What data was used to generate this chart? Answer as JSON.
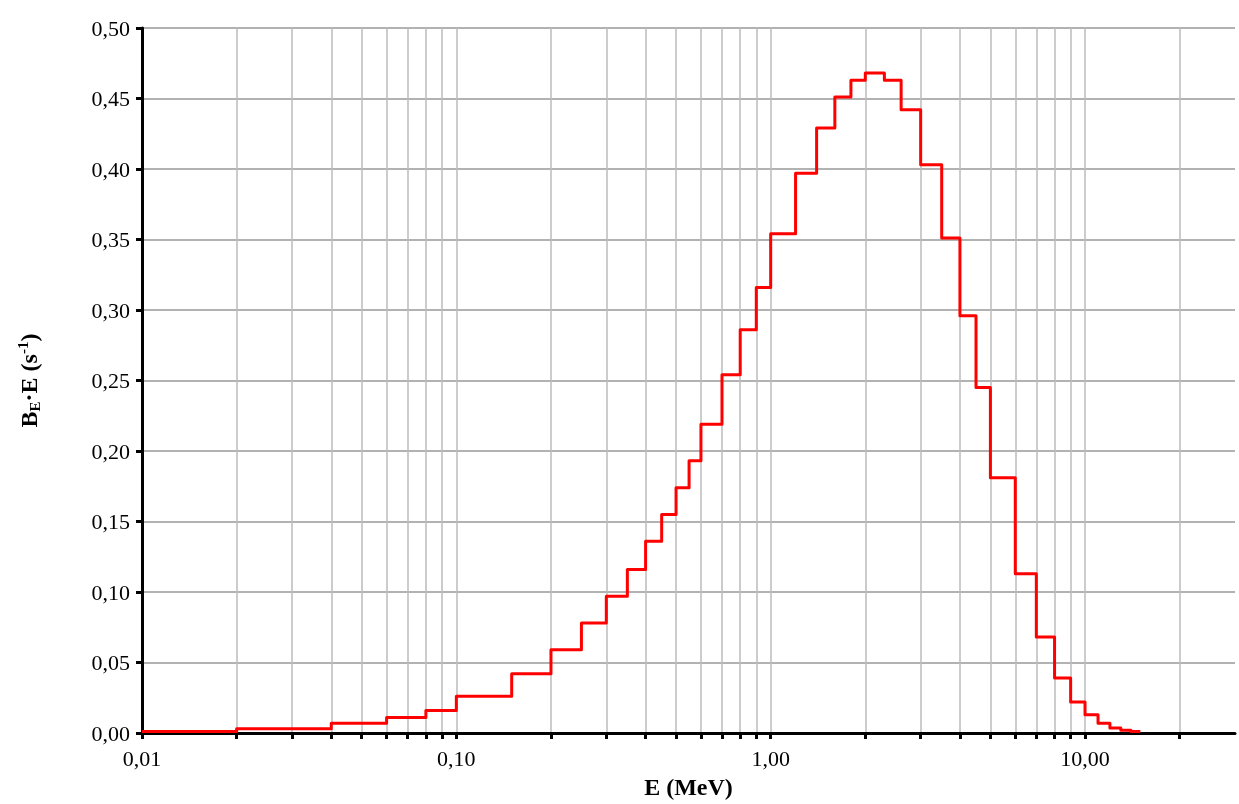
{
  "chart_data": {
    "type": "histogram",
    "xlabel": "E (MeV)",
    "ylabel": "B$_{E}$·E (s$^{-1}$)",
    "bins": [
      0.01,
      0.02,
      0.04,
      0.06,
      0.08,
      0.1,
      0.15,
      0.2,
      0.25,
      0.3,
      0.35,
      0.4,
      0.45,
      0.5,
      0.55,
      0.6,
      0.7,
      0.8,
      0.9,
      1,
      1.2,
      1.4,
      1.6,
      1.8,
      2,
      2.3,
      2.6,
      3,
      3.5,
      4,
      4.5,
      5,
      6,
      7,
      8,
      9,
      10,
      11,
      12,
      13,
      14,
      15
    ],
    "values": [
      0.001,
      0.003,
      0.007,
      0.011,
      0.016,
      0.026,
      0.042,
      0.059,
      0.078,
      0.097,
      0.116,
      0.136,
      0.155,
      0.174,
      0.193,
      0.219,
      0.254,
      0.286,
      0.316,
      0.354,
      0.397,
      0.429,
      0.451,
      0.463,
      0.468,
      0.463,
      0.442,
      0.403,
      0.351,
      0.296,
      0.245,
      0.181,
      0.113,
      0.068,
      0.039,
      0.022,
      0.013,
      0.007,
      0.0035,
      0.002,
      0.001
    ],
    "color": "#ff0000",
    "log": "x",
    "grid": true,
    "line_style": "solid",
    "xlim": [
      0.01,
      30
    ],
    "xticks": [
      {
        "value": 0.01,
        "label": "0,01"
      },
      {
        "value": 0.02,
        "label": null
      },
      {
        "value": 0.03,
        "label": null
      },
      {
        "value": 0.04,
        "label": null
      },
      {
        "value": 0.05,
        "label": null
      },
      {
        "value": 0.06,
        "label": null
      },
      {
        "value": 0.07,
        "label": null
      },
      {
        "value": 0.08,
        "label": null
      },
      {
        "value": 0.09,
        "label": null
      },
      {
        "value": 0.1,
        "label": "0,10"
      },
      {
        "value": 0.2,
        "label": null
      },
      {
        "value": 0.3,
        "label": null
      },
      {
        "value": 0.4,
        "label": null
      },
      {
        "value": 0.5,
        "label": null
      },
      {
        "value": 0.6,
        "label": null
      },
      {
        "value": 0.7,
        "label": null
      },
      {
        "value": 0.8,
        "label": null
      },
      {
        "value": 0.9,
        "label": null
      },
      {
        "value": 1,
        "label": "1,00"
      },
      {
        "value": 2,
        "label": null
      },
      {
        "value": 3,
        "label": null
      },
      {
        "value": 4,
        "label": null
      },
      {
        "value": 5,
        "label": null
      },
      {
        "value": 6,
        "label": null
      },
      {
        "value": 7,
        "label": null
      },
      {
        "value": 8,
        "label": null
      },
      {
        "value": 9,
        "label": null
      },
      {
        "value": 10,
        "label": "10,00"
      },
      {
        "value": 20,
        "label": null
      }
    ],
    "ylim": [
      0,
      0.5
    ],
    "yticks": [
      {
        "value": 0,
        "label": "0,00"
      },
      {
        "value": 0.05,
        "label": "0,05"
      },
      {
        "value": 0.1,
        "label": "0,10"
      },
      {
        "value": 0.15,
        "label": "0,15"
      },
      {
        "value": 0.2,
        "label": "0,20"
      },
      {
        "value": 0.25,
        "label": "0,25"
      },
      {
        "value": 0.3,
        "label": "0,30"
      },
      {
        "value": 0.35,
        "label": "0,35"
      },
      {
        "value": 0.4,
        "label": "0,40"
      },
      {
        "value": 0.45,
        "label": "0,45"
      },
      {
        "value": 0.5,
        "label": "0,50"
      }
    ]
  }
}
